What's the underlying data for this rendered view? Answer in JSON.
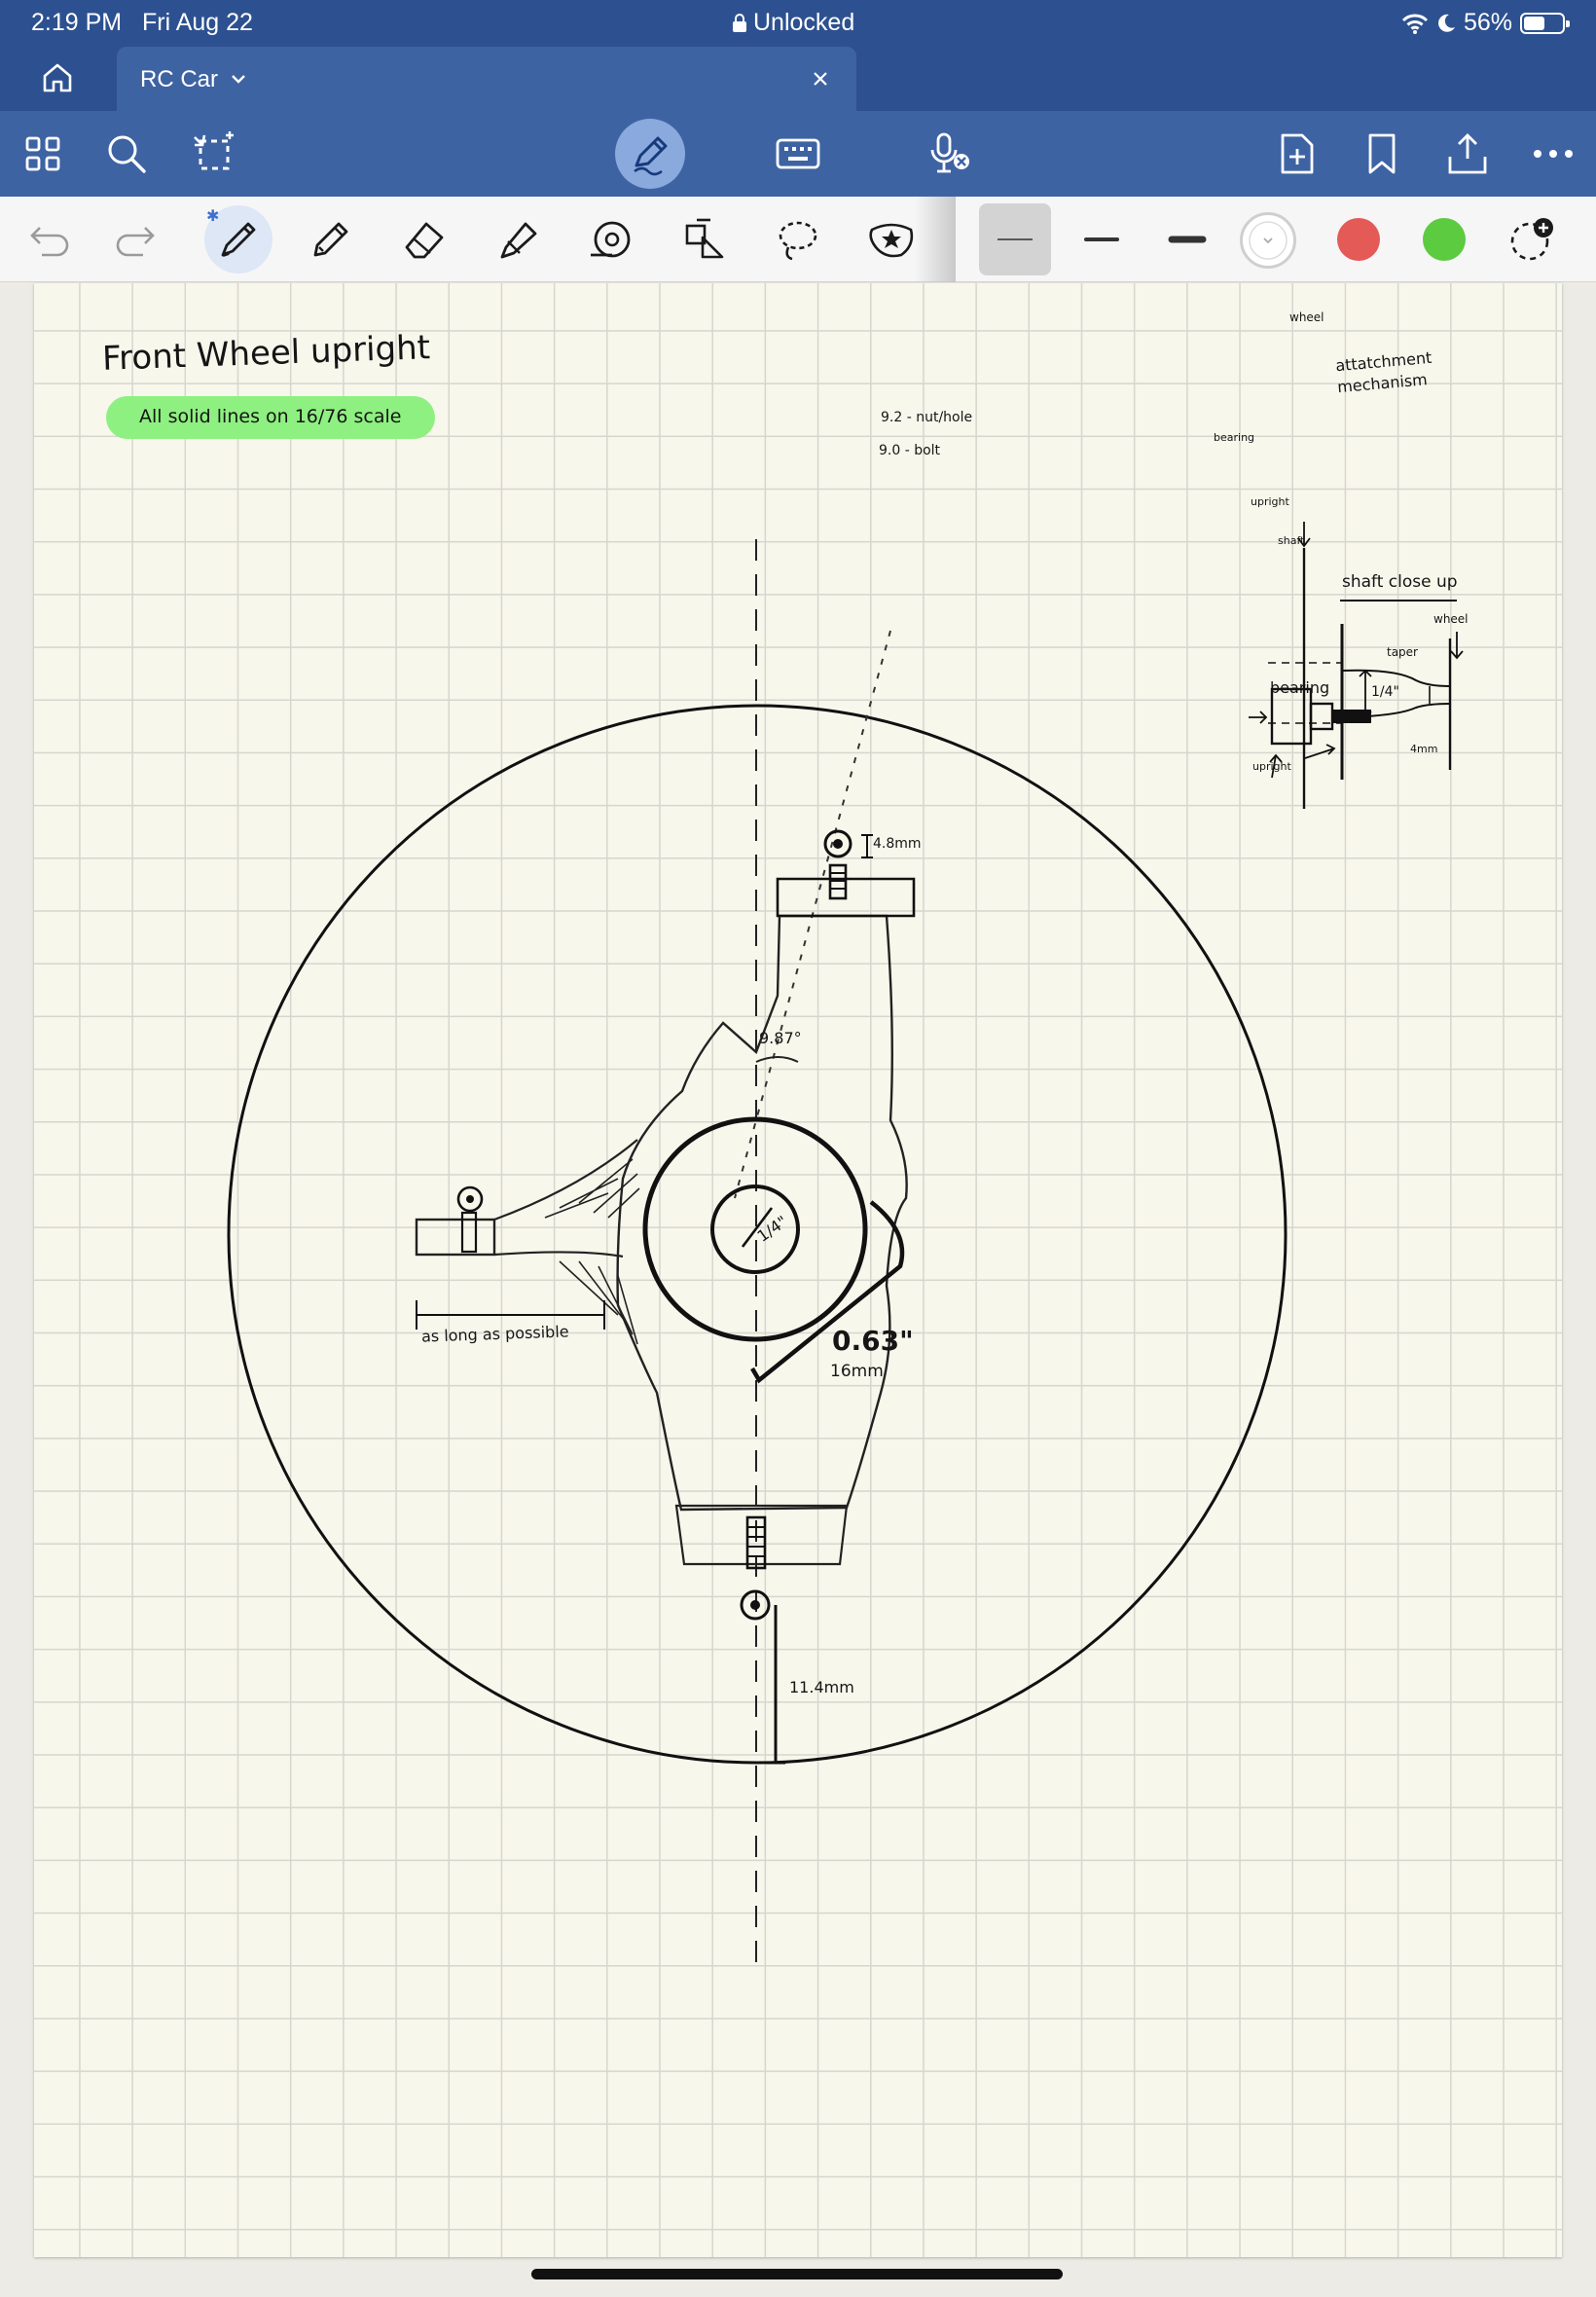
{
  "status_bar": {
    "time": "2:19 PM",
    "date": "Fri Aug 22",
    "lock_label": "Unlocked",
    "battery_percent": "56%",
    "battery_level": 0.56
  },
  "tab": {
    "title": "RC Car"
  },
  "colors": {
    "brand_blue": "#2d5190",
    "toolbar_blue": "#3e63a3",
    "active_tool": "#8aa9dc",
    "ink_black": "#151515",
    "red_swatch": "#e45a57",
    "green_swatch": "#5ccb3f",
    "highlight_green": "#8ef080",
    "paper": "#f8f7ec"
  },
  "toolbar_icons": [
    "grid-icon",
    "search-icon",
    "lasso-select-icon",
    "pen-mode-icon",
    "keyboard-icon",
    "microphone-off-icon",
    "add-page-icon",
    "bookmark-icon",
    "share-icon",
    "more-icon"
  ],
  "tools_icons": [
    "undo-icon",
    "redo-icon",
    "pen-icon",
    "pencil-icon",
    "eraser-icon",
    "highlighter-icon",
    "tape-icon",
    "shapes-icon",
    "lasso-icon",
    "sticker-icon"
  ],
  "stroke_widths": [
    "thin",
    "medium",
    "thick"
  ],
  "note": {
    "title": "Front Wheel upright",
    "highlight": "All solid lines on 16/76 scale",
    "scale_numerator": "16",
    "scale_denominator": "76",
    "bolt_note_1": "9.2 - nut/hole",
    "bolt_note_2": "9.0 - bolt",
    "top_bolt_dim": "4.8mm",
    "angle_label": "9.87°",
    "center_label": "1/4\"",
    "radius_label": "0.63\"",
    "radius_mm": "16mm",
    "arm_label": "as long as possible",
    "bottom_dim": "11.4mm",
    "detail_wheel": "wheel",
    "detail_title": "attatchment mechanism",
    "detail_bearing": "bearing",
    "detail_upright": "upright",
    "detail_shaft": "shaft",
    "closeup_title": "shaft close up",
    "closeup_wheel": "wheel",
    "closeup_taper": "taper",
    "closeup_bearing": "bearing",
    "closeup_dim": "1/4\"",
    "closeup_small": "4mm",
    "closeup_upright": "upright"
  }
}
